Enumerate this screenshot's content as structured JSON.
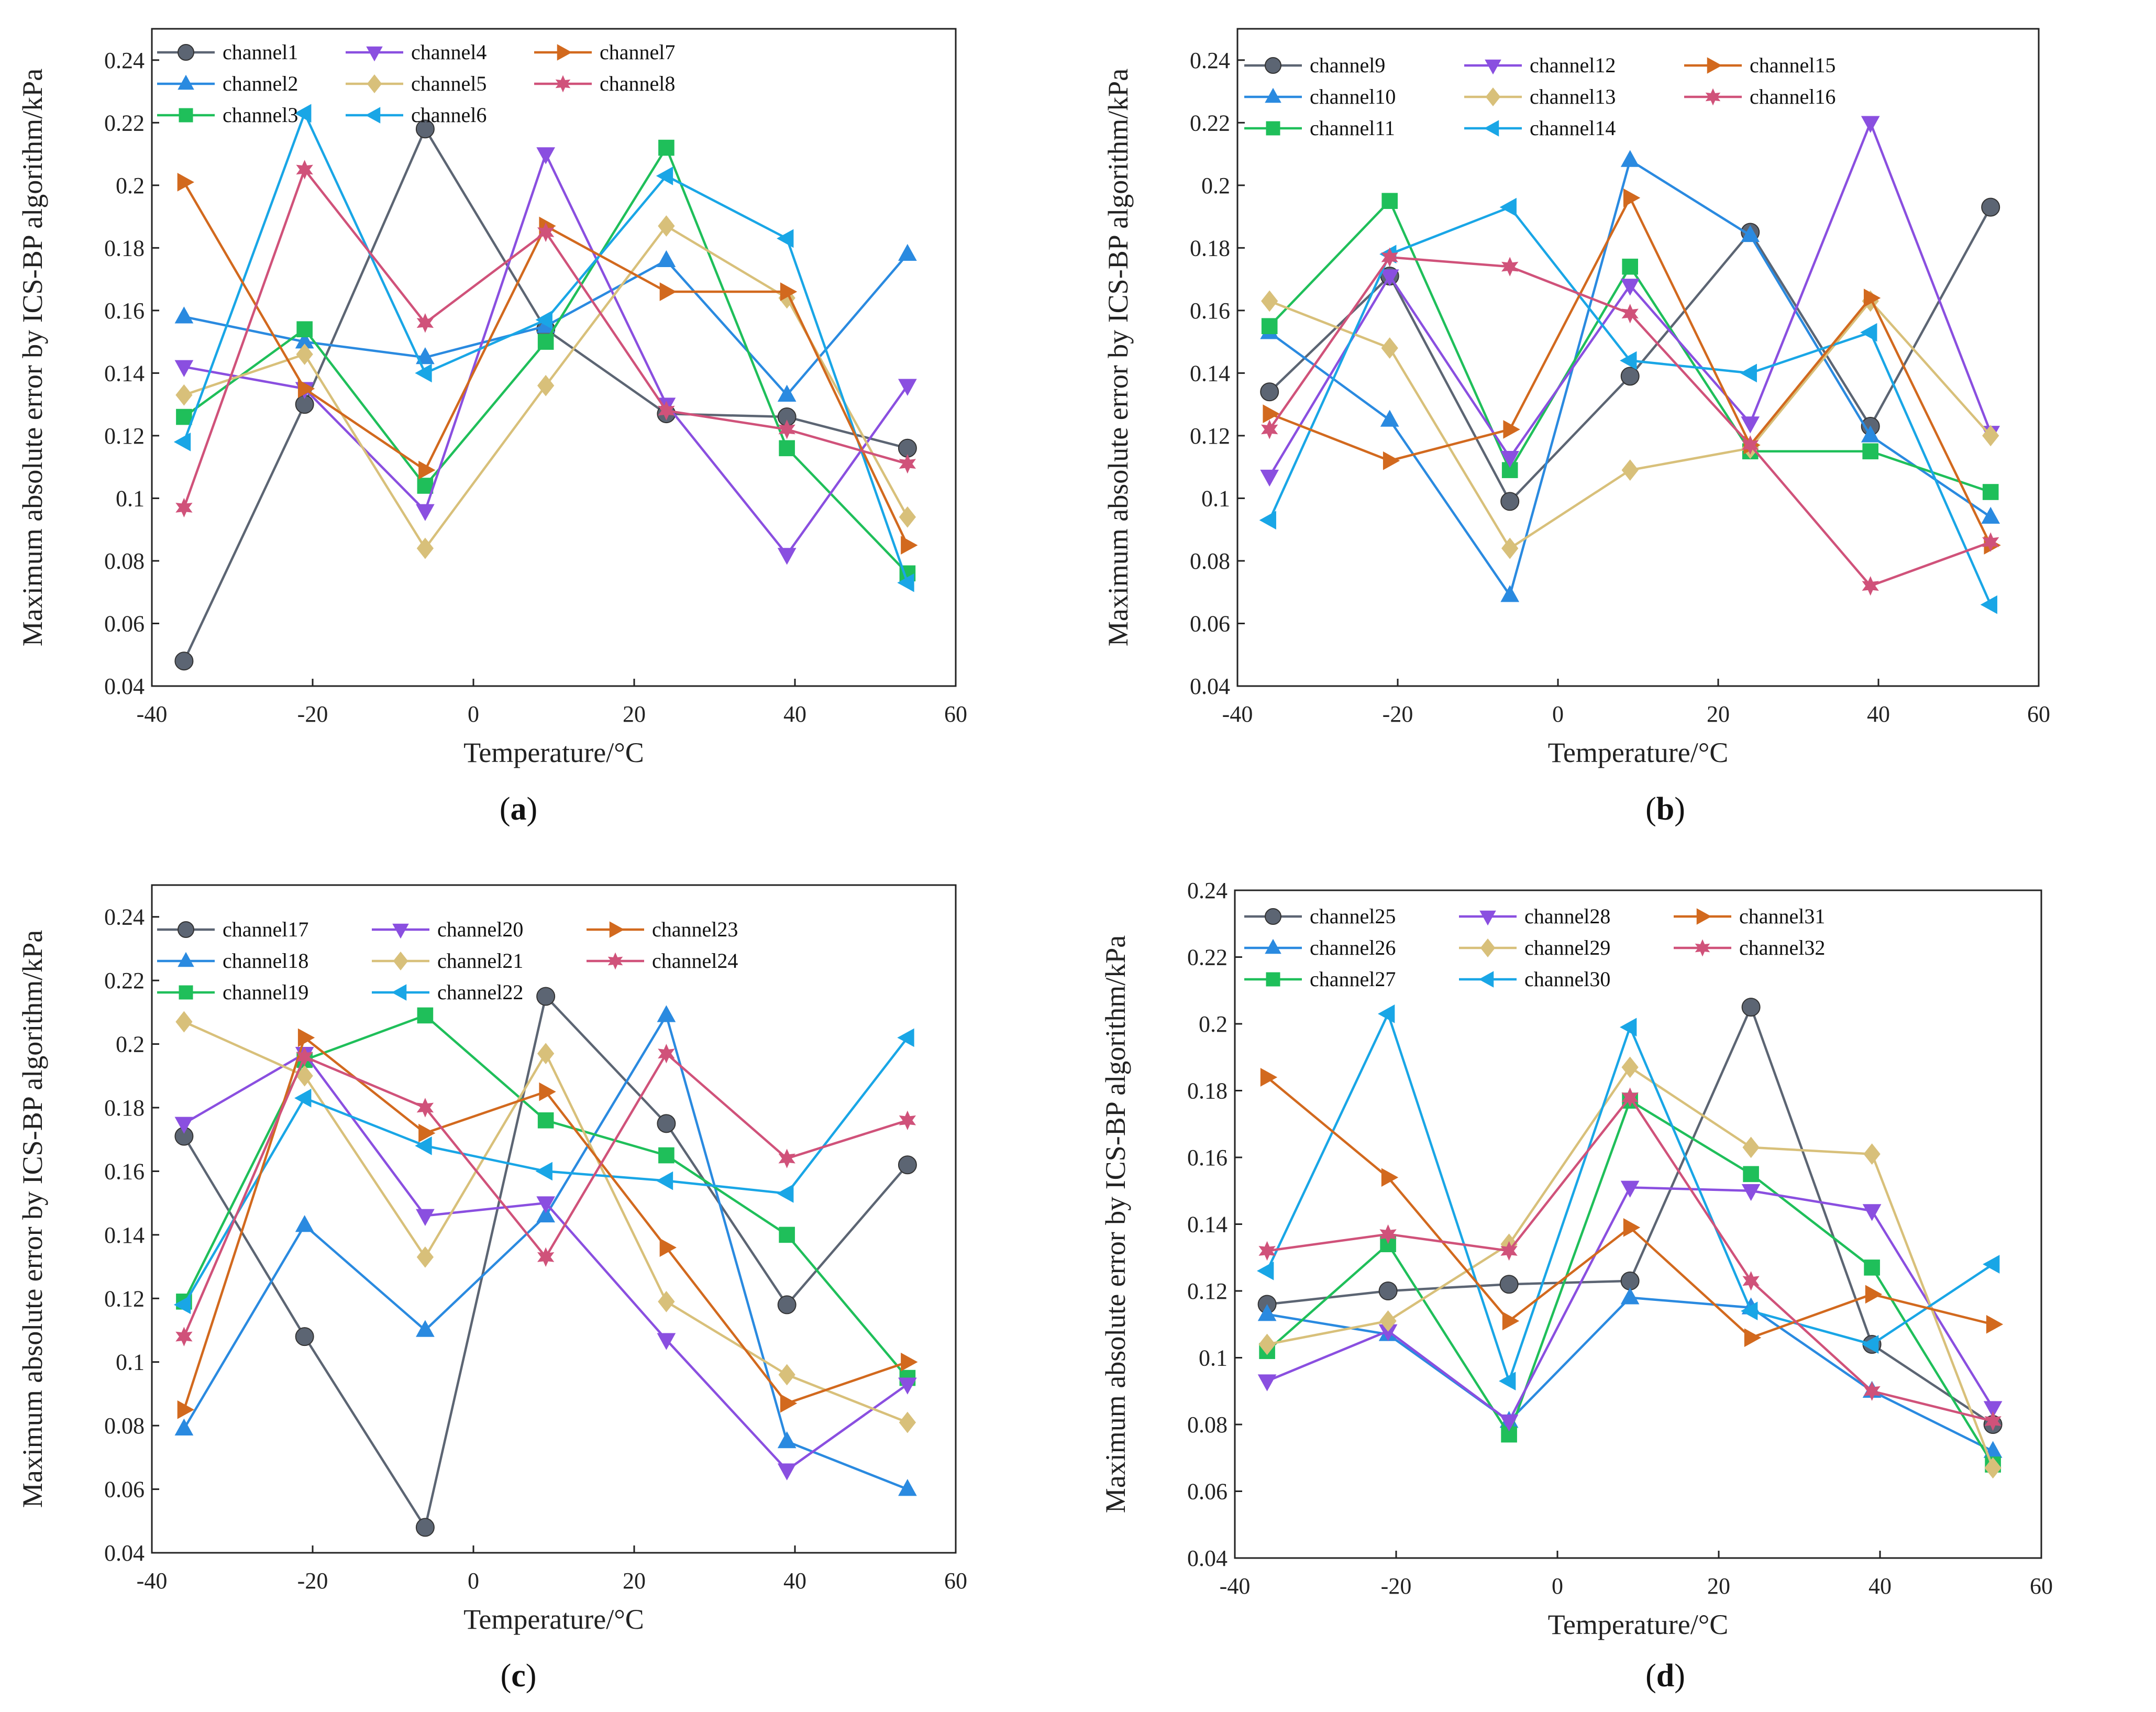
{
  "figure": {
    "x_axis_label": "Temperature/°C",
    "y_axis_label": "Maximum absolute error by ICS-BP algorithm/kPa",
    "x_ticks": [
      "-40",
      "-20",
      "0",
      "20",
      "40",
      "60"
    ],
    "y_ticks": [
      "0.04",
      "0.06",
      "0.08",
      "0.1",
      "0.12",
      "0.14",
      "0.16",
      "0.18",
      "0.2",
      "0.22",
      "0.24"
    ]
  },
  "series_styles": [
    {
      "color": "#5c6573",
      "marker": "circle"
    },
    {
      "color": "#2a8ae0",
      "marker": "triangle-up"
    },
    {
      "color": "#1fbf5a",
      "marker": "square"
    },
    {
      "color": "#8a4fe0",
      "marker": "triangle-down"
    },
    {
      "color": "#d8c07a",
      "marker": "diamond"
    },
    {
      "color": "#19a6e6",
      "marker": "triangle-left"
    },
    {
      "color": "#d2691e",
      "marker": "triangle-right"
    },
    {
      "color": "#d0527a",
      "marker": "hexagram"
    }
  ],
  "chart_data": [
    {
      "type": "line",
      "caption": "a",
      "x": [
        -36,
        -21,
        -6,
        9,
        24,
        39,
        54
      ],
      "xlim": [
        -40,
        60
      ],
      "ylim": [
        0.04,
        0.25
      ],
      "xlabel": "Temperature/°C",
      "ylabel": "Maximum absolute error by ICS-BP algorithm/kPa",
      "series": [
        {
          "name": "channel1",
          "values": [
            0.048,
            0.13,
            0.218,
            0.154,
            0.127,
            0.126,
            0.116
          ]
        },
        {
          "name": "channel2",
          "values": [
            0.158,
            0.15,
            0.145,
            0.155,
            0.176,
            0.133,
            0.178
          ]
        },
        {
          "name": "channel3",
          "values": [
            0.126,
            0.154,
            0.104,
            0.15,
            0.212,
            0.116,
            0.076
          ]
        },
        {
          "name": "channel4",
          "values": [
            0.142,
            0.135,
            0.096,
            0.21,
            0.13,
            0.082,
            0.136
          ]
        },
        {
          "name": "channel5",
          "values": [
            0.133,
            0.146,
            0.084,
            0.136,
            0.187,
            0.164,
            0.094
          ]
        },
        {
          "name": "channel6",
          "values": [
            0.118,
            0.223,
            0.14,
            0.157,
            0.203,
            0.183,
            0.073
          ]
        },
        {
          "name": "channel7",
          "values": [
            0.201,
            0.135,
            0.109,
            0.187,
            0.166,
            0.166,
            0.085
          ]
        },
        {
          "name": "channel8",
          "values": [
            0.097,
            0.205,
            0.156,
            0.185,
            0.128,
            0.122,
            0.111
          ]
        }
      ]
    },
    {
      "type": "line",
      "caption": "b",
      "x": [
        -36,
        -21,
        -6,
        9,
        24,
        39,
        54
      ],
      "xlim": [
        -40,
        60
      ],
      "ylim": [
        0.04,
        0.25
      ],
      "xlabel": "Temperature/°C",
      "ylabel": "Maximum absolute error by ICS-BP algorithm/kPa",
      "series": [
        {
          "name": "channel9",
          "values": [
            0.134,
            0.171,
            0.099,
            0.139,
            0.185,
            0.123,
            0.193
          ]
        },
        {
          "name": "channel10",
          "values": [
            0.153,
            0.125,
            0.069,
            0.208,
            0.184,
            0.12,
            0.094
          ]
        },
        {
          "name": "channel11",
          "values": [
            0.155,
            0.195,
            0.109,
            0.174,
            0.115,
            0.115,
            0.102
          ]
        },
        {
          "name": "channel12",
          "values": [
            0.107,
            0.171,
            0.113,
            0.168,
            0.124,
            0.22,
            0.121
          ]
        },
        {
          "name": "channel13",
          "values": [
            0.163,
            0.148,
            0.084,
            0.109,
            0.116,
            0.163,
            0.12
          ]
        },
        {
          "name": "channel14",
          "values": [
            0.093,
            0.178,
            0.193,
            0.144,
            0.14,
            0.153,
            0.066
          ]
        },
        {
          "name": "channel15",
          "values": [
            0.127,
            0.112,
            0.122,
            0.196,
            0.117,
            0.164,
            0.085
          ]
        },
        {
          "name": "channel16",
          "values": [
            0.122,
            0.177,
            0.174,
            0.159,
            0.117,
            0.072,
            0.086
          ]
        }
      ]
    },
    {
      "type": "line",
      "caption": "c",
      "x": [
        -36,
        -21,
        -6,
        9,
        24,
        39,
        54
      ],
      "xlim": [
        -40,
        60
      ],
      "ylim": [
        0.04,
        0.25
      ],
      "xlabel": "Temperature/°C",
      "ylabel": "Maximum absolute error by ICS-BP algorithm/kPa",
      "series": [
        {
          "name": "channel17",
          "values": [
            0.171,
            0.108,
            0.048,
            0.215,
            0.175,
            0.118,
            0.162
          ]
        },
        {
          "name": "channel18",
          "values": [
            0.079,
            0.143,
            0.11,
            0.146,
            0.209,
            0.075,
            0.06
          ]
        },
        {
          "name": "channel19",
          "values": [
            0.119,
            0.195,
            0.209,
            0.176,
            0.165,
            0.14,
            0.095
          ]
        },
        {
          "name": "channel20",
          "values": [
            0.175,
            0.197,
            0.146,
            0.15,
            0.107,
            0.066,
            0.093
          ]
        },
        {
          "name": "channel21",
          "values": [
            0.207,
            0.19,
            0.133,
            0.197,
            0.119,
            0.096,
            0.081
          ]
        },
        {
          "name": "channel22",
          "values": [
            0.118,
            0.183,
            0.168,
            0.16,
            0.157,
            0.153,
            0.202
          ]
        },
        {
          "name": "channel23",
          "values": [
            0.085,
            0.202,
            0.172,
            0.185,
            0.136,
            0.087,
            0.1
          ]
        },
        {
          "name": "channel24",
          "values": [
            0.108,
            0.196,
            0.18,
            0.133,
            0.197,
            0.164,
            0.176
          ]
        }
      ]
    },
    {
      "type": "line",
      "caption": "d",
      "x": [
        -36,
        -21,
        -6,
        9,
        24,
        39,
        54
      ],
      "xlim": [
        -40,
        60
      ],
      "ylim": [
        0.04,
        0.24
      ],
      "xlabel": "Temperature/°C",
      "ylabel": "Maximum absolute error by ICS-BP algorithm/kPa",
      "series": [
        {
          "name": "channel25",
          "values": [
            0.116,
            0.12,
            0.122,
            0.123,
            0.205,
            0.104,
            0.08
          ]
        },
        {
          "name": "channel26",
          "values": [
            0.113,
            0.107,
            0.081,
            0.118,
            0.115,
            0.09,
            0.072
          ]
        },
        {
          "name": "channel27",
          "values": [
            0.102,
            0.134,
            0.077,
            0.177,
            0.155,
            0.127,
            0.068
          ]
        },
        {
          "name": "channel28",
          "values": [
            0.093,
            0.108,
            0.081,
            0.151,
            0.15,
            0.144,
            0.085
          ]
        },
        {
          "name": "channel29",
          "values": [
            0.104,
            0.111,
            0.134,
            0.187,
            0.163,
            0.161,
            0.067
          ]
        },
        {
          "name": "channel30",
          "values": [
            0.126,
            0.203,
            0.093,
            0.199,
            0.114,
            0.104,
            0.128
          ]
        },
        {
          "name": "channel31",
          "values": [
            0.184,
            0.154,
            0.111,
            0.139,
            0.106,
            0.119,
            0.11
          ]
        },
        {
          "name": "channel32",
          "values": [
            0.132,
            0.137,
            0.132,
            0.178,
            0.123,
            0.09,
            0.081
          ]
        }
      ]
    }
  ]
}
